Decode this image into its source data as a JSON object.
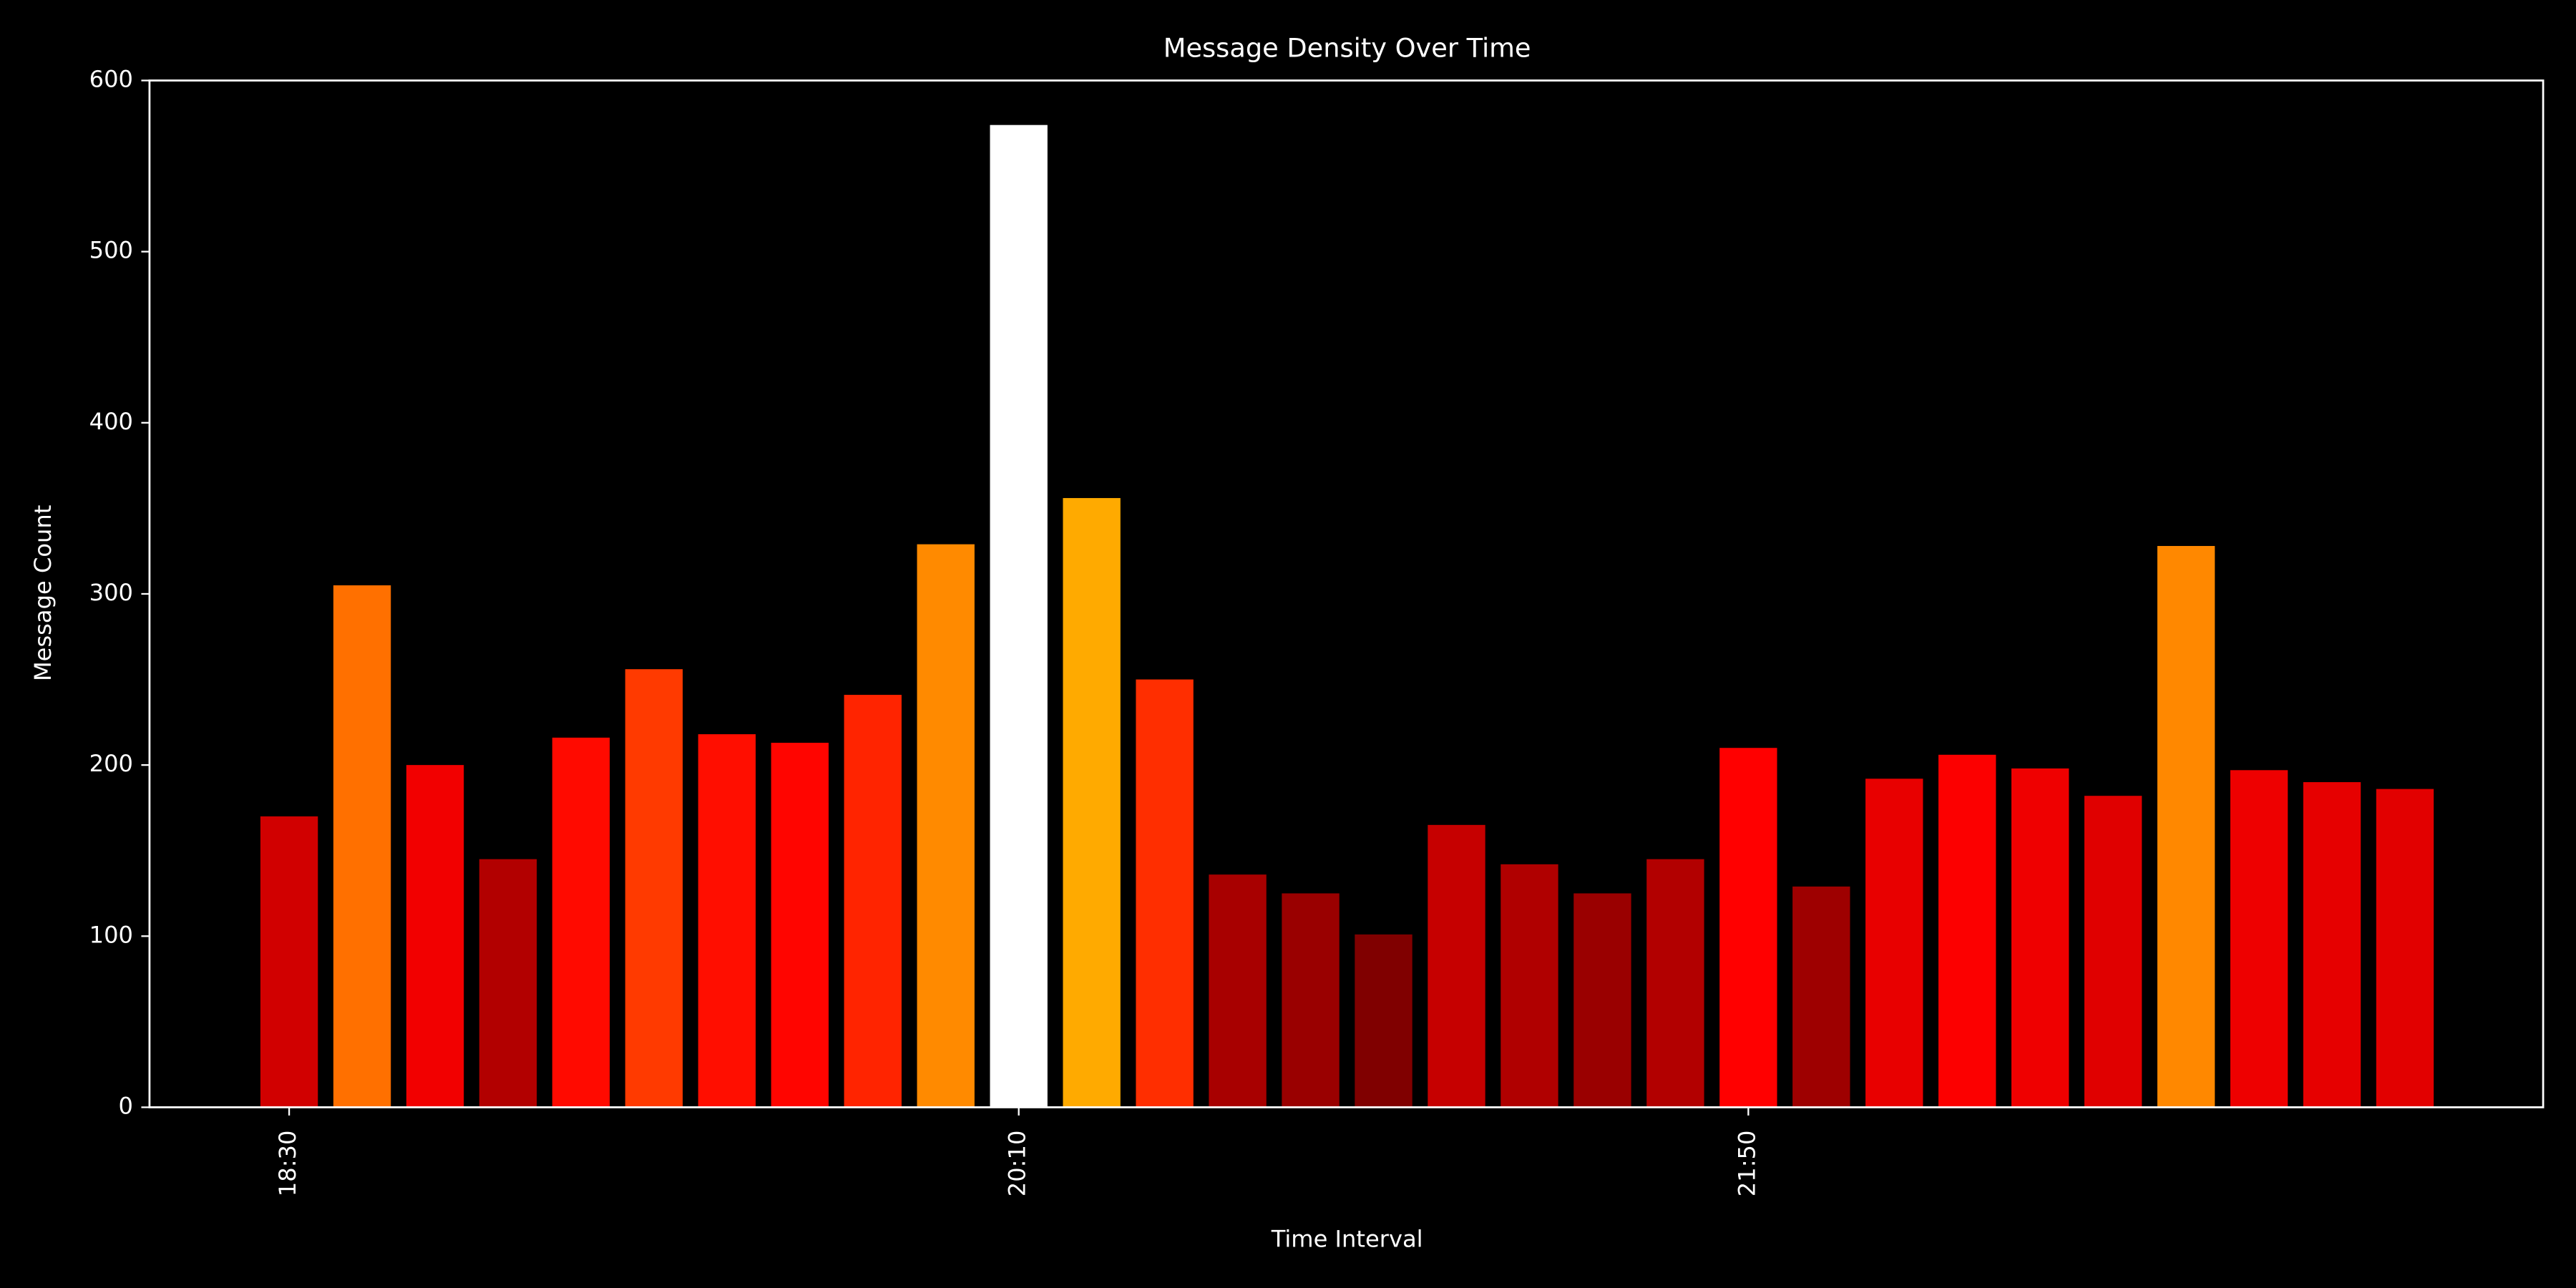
{
  "chart_data": {
    "type": "bar",
    "title": "Message Density Over Time",
    "x_label": "Time Interval",
    "y_label": "Message Count",
    "categories": [
      "18:30",
      null,
      null,
      null,
      null,
      null,
      null,
      null,
      null,
      null,
      "20:10",
      null,
      null,
      null,
      null,
      null,
      null,
      null,
      null,
      null,
      "21:50",
      null,
      null,
      null,
      null,
      null,
      null,
      null,
      null,
      null
    ],
    "values": [
      170,
      305,
      200,
      145,
      216,
      256,
      218,
      213,
      241,
      329,
      574,
      356,
      250,
      136,
      125,
      101,
      165,
      142,
      125,
      145,
      210,
      129,
      192,
      206,
      198,
      182,
      328,
      197,
      190,
      186
    ],
    "colors": [
      "#d10000",
      "#ff7000",
      "#f20000",
      "#b20000",
      "#ff0a00",
      "#ff3a00",
      "#ff0e00",
      "#ff0500",
      "#ff2400",
      "#ff8a00",
      "#ffffff",
      "#ffaa00",
      "#ff2e00",
      "#a80000",
      "#9a0000",
      "#800000",
      "#c60000",
      "#b00000",
      "#9a0000",
      "#b20000",
      "#ff0000",
      "#9e0000",
      "#e80000",
      "#fc0000",
      "#ef0000",
      "#e00000",
      "#ff8800",
      "#ee0000",
      "#e60000",
      "#e20000"
    ],
    "ylim": [
      0,
      600
    ],
    "yticks": [
      0,
      100,
      200,
      300,
      400,
      500,
      600
    ],
    "grid": false
  }
}
